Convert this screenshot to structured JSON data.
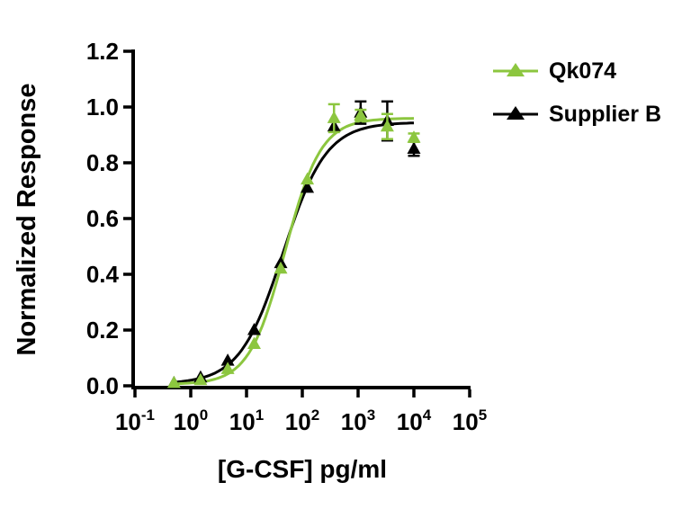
{
  "chart_data": {
    "type": "scatter",
    "title": "",
    "xlabel": "[G-CSF] pg/ml",
    "ylabel": "Normalized Response",
    "x_scale": "log10",
    "xlim_log10": [
      -1,
      5
    ],
    "ylim": [
      0,
      1.2
    ],
    "x_tick_exponents": [
      -1,
      0,
      1,
      2,
      3,
      4,
      5
    ],
    "y_ticks": [
      "0.0",
      "0.2",
      "0.4",
      "0.6",
      "0.8",
      "1.0",
      "1.2"
    ],
    "grid": false,
    "legend_position": "top-right",
    "x": [
      0.5,
      1.5,
      4.6,
      13.7,
      41,
      123,
      370,
      1111,
      3333,
      10000
    ],
    "series": [
      {
        "name": "Qk074",
        "color": "#8CC63F",
        "marker": "triangle-up",
        "values": [
          0.01,
          0.02,
          0.06,
          0.15,
          0.42,
          0.74,
          0.96,
          0.97,
          0.93,
          0.89
        ],
        "errors": [
          0,
          0,
          0,
          0,
          0,
          0,
          0.05,
          0.02,
          0.045,
          0.015
        ],
        "fit": {
          "model": "4PL",
          "bottom": 0.005,
          "top": 0.96,
          "ec50": 49,
          "hill": 1.35
        }
      },
      {
        "name": "Supplier B",
        "color": "#000000",
        "marker": "triangle-up",
        "values": [
          0.01,
          0.03,
          0.09,
          0.2,
          0.44,
          0.71,
          0.93,
          0.98,
          0.95,
          0.85
        ],
        "errors": [
          0,
          0,
          0,
          0,
          0,
          0,
          0,
          0.04,
          0.07,
          0.025
        ],
        "fit": {
          "model": "4PL",
          "bottom": 0.007,
          "top": 0.945,
          "ec50": 45,
          "hill": 1.12
        }
      }
    ],
    "curve_x_range": [
      0.45,
      10000
    ]
  }
}
